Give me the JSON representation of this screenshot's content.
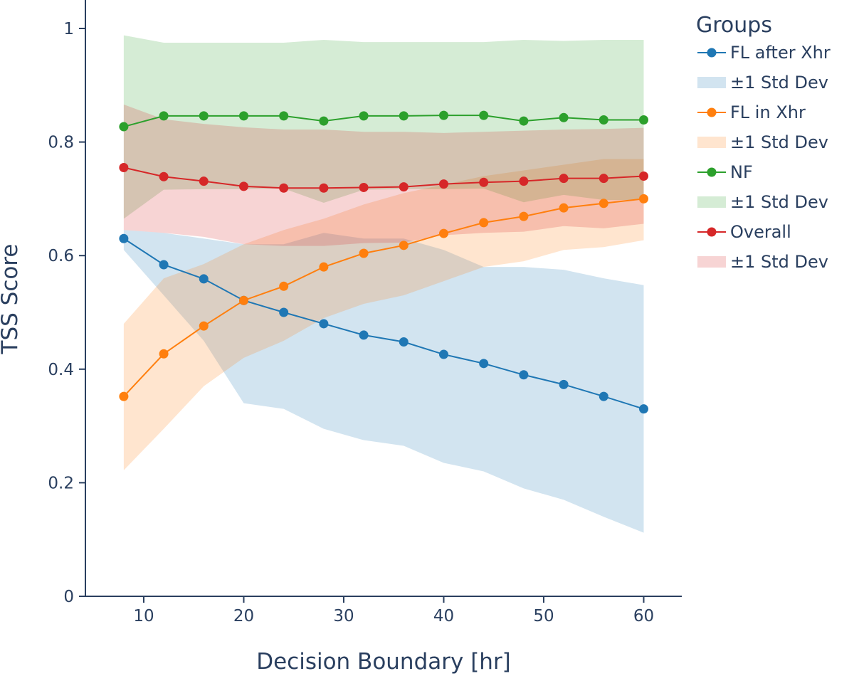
{
  "chart_data": {
    "type": "line",
    "title": "",
    "xlabel": "Decision Boundary [hr]",
    "ylabel": "TSS Score",
    "xlim": [
      5,
      65
    ],
    "ylim": [
      0,
      1.04
    ],
    "x_ticks": [
      10,
      20,
      30,
      40,
      50,
      60
    ],
    "x_tick_labels": [
      "10",
      "20",
      "30",
      "40",
      "50",
      "60"
    ],
    "y_ticks": [
      0,
      0.2,
      0.4,
      0.6,
      0.8,
      1
    ],
    "y_tick_labels": [
      "0",
      "0.2",
      "0.4",
      "0.6",
      "0.8",
      "1"
    ],
    "grid": false,
    "legend_title": "Groups",
    "legend_position": "right",
    "x": [
      8,
      12,
      16,
      20,
      24,
      28,
      32,
      36,
      40,
      44,
      48,
      52,
      56,
      60
    ],
    "series": [
      {
        "name": "FL after Xhr",
        "band_name": "±1 Std Dev",
        "color": "#1f77b4",
        "band_color": "rgba(31,119,180,0.2)",
        "values": [
          0.63,
          0.584,
          0.559,
          0.521,
          0.5,
          0.48,
          0.46,
          0.448,
          0.426,
          0.41,
          0.39,
          0.373,
          0.352,
          0.33
        ],
        "upper": [
          0.645,
          0.64,
          0.63,
          0.62,
          0.62,
          0.64,
          0.63,
          0.63,
          0.61,
          0.58,
          0.58,
          0.575,
          0.56,
          0.548
        ],
        "lower": [
          0.61,
          0.53,
          0.45,
          0.34,
          0.33,
          0.295,
          0.275,
          0.265,
          0.235,
          0.22,
          0.19,
          0.17,
          0.14,
          0.112
        ]
      },
      {
        "name": "FL in Xhr",
        "band_name": "±1 Std Dev",
        "color": "#ff7f0e",
        "band_color": "rgba(255,127,14,0.2)",
        "values": [
          0.352,
          0.427,
          0.476,
          0.521,
          0.546,
          0.58,
          0.604,
          0.618,
          0.639,
          0.658,
          0.669,
          0.684,
          0.692,
          0.7
        ],
        "upper": [
          0.48,
          0.56,
          0.585,
          0.62,
          0.645,
          0.665,
          0.69,
          0.71,
          0.725,
          0.74,
          0.75,
          0.76,
          0.77,
          0.77
        ],
        "lower": [
          0.222,
          0.295,
          0.37,
          0.42,
          0.45,
          0.49,
          0.515,
          0.53,
          0.555,
          0.58,
          0.59,
          0.61,
          0.615,
          0.627
        ]
      },
      {
        "name": "NF",
        "band_name": "±1 Std Dev",
        "color": "#2ca02c",
        "band_color": "rgba(44,160,44,0.2)",
        "values": [
          0.827,
          0.846,
          0.846,
          0.846,
          0.846,
          0.837,
          0.846,
          0.846,
          0.847,
          0.847,
          0.837,
          0.843,
          0.839,
          0.839
        ],
        "upper": [
          0.988,
          0.975,
          0.975,
          0.975,
          0.975,
          0.98,
          0.976,
          0.976,
          0.976,
          0.976,
          0.98,
          0.978,
          0.98,
          0.98
        ],
        "lower": [
          0.665,
          0.716,
          0.717,
          0.717,
          0.718,
          0.693,
          0.716,
          0.717,
          0.717,
          0.718,
          0.694,
          0.707,
          0.698,
          0.698
        ]
      },
      {
        "name": "Overall",
        "band_name": "±1 Std Dev",
        "color": "#d62728",
        "band_color": "rgba(214,39,40,0.2)",
        "values": [
          0.755,
          0.739,
          0.731,
          0.722,
          0.719,
          0.719,
          0.72,
          0.721,
          0.726,
          0.729,
          0.731,
          0.736,
          0.736,
          0.74
        ],
        "upper": [
          0.866,
          0.84,
          0.832,
          0.826,
          0.822,
          0.822,
          0.818,
          0.818,
          0.816,
          0.818,
          0.82,
          0.822,
          0.823,
          0.825
        ],
        "lower": [
          0.645,
          0.64,
          0.633,
          0.62,
          0.617,
          0.617,
          0.622,
          0.623,
          0.636,
          0.64,
          0.642,
          0.652,
          0.648,
          0.656
        ]
      }
    ]
  }
}
